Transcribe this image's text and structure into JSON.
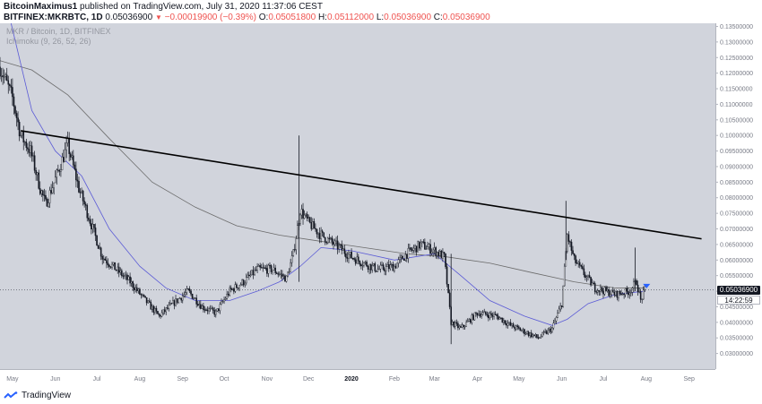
{
  "header": {
    "author": "BitcoinMaximus1",
    "published_text": " published on TradingView.com, July 31, 2020 11:37:06 CEST",
    "symbol": "BITFINEX:MKRBTC, 1D",
    "last_price": "0.05036900",
    "change": "−0.00019900 (−0.39%)",
    "open_label": "O:",
    "open": "0.05051800",
    "high_label": "H:",
    "high": "0.05112000",
    "low_label": "L:",
    "low": "0.05036900",
    "close_label": "C:",
    "close": "0.05036900"
  },
  "legend": {
    "series_title": "MKR / Bitcoin, 1D, BITFINEX",
    "indicator": "Ichimoku (9, 26, 52, 26)"
  },
  "price_tag": "0.05036900",
  "countdown": "14:22:59",
  "footer": {
    "brand": "TradingView"
  },
  "colors": {
    "plot_bg": "#d1d4dc",
    "candle": "#131722",
    "fast_line": "#5b5bd6",
    "slow_line": "#6b6b6b",
    "trendline": "#000000",
    "marker": "#2962ff"
  },
  "chart_data": {
    "type": "candlestick",
    "ylim": [
      0.025,
      0.136
    ],
    "y_ticks": [
      "0.02500000",
      "0.03000000",
      "0.03500000",
      "0.04000000",
      "0.04500000",
      "0.05000000",
      "0.05500000",
      "0.06000000",
      "0.06500000",
      "0.07000000",
      "0.07500000",
      "0.08000000",
      "0.08500000",
      "0.09000000",
      "0.09500000",
      "0.10000000",
      "0.10500000",
      "0.11000000",
      "0.11500000",
      "0.12000000",
      "0.12500000",
      "0.13000000",
      "0.13500000"
    ],
    "x_range": [
      "2019-04-22",
      "2020-09-20"
    ],
    "x_ticks": [
      {
        "label": "May",
        "date": "2019-05-01"
      },
      {
        "label": "Jun",
        "date": "2019-06-01"
      },
      {
        "label": "Jul",
        "date": "2019-07-01"
      },
      {
        "label": "Aug",
        "date": "2019-08-01"
      },
      {
        "label": "Sep",
        "date": "2019-09-01"
      },
      {
        "label": "Oct",
        "date": "2019-10-01"
      },
      {
        "label": "Nov",
        "date": "2019-11-01"
      },
      {
        "label": "Dec",
        "date": "2019-12-01"
      },
      {
        "label": "2020",
        "date": "2020-01-01",
        "bold": true
      },
      {
        "label": "Feb",
        "date": "2020-02-01"
      },
      {
        "label": "Mar",
        "date": "2020-03-01"
      },
      {
        "label": "Apr",
        "date": "2020-04-01"
      },
      {
        "label": "May",
        "date": "2020-05-01"
      },
      {
        "label": "Jun",
        "date": "2020-06-01"
      },
      {
        "label": "Jul",
        "date": "2020-07-01"
      },
      {
        "label": "Aug",
        "date": "2020-08-01"
      },
      {
        "label": "Sep",
        "date": "2020-09-01"
      }
    ],
    "price_path": [
      [
        "2019-04-22",
        0.122
      ],
      [
        "2019-05-01",
        0.112
      ],
      [
        "2019-05-07",
        0.1
      ],
      [
        "2019-05-14",
        0.095
      ],
      [
        "2019-05-21",
        0.083
      ],
      [
        "2019-05-25",
        0.078
      ],
      [
        "2019-06-01",
        0.086
      ],
      [
        "2019-06-10",
        0.097
      ],
      [
        "2019-06-18",
        0.083
      ],
      [
        "2019-06-25",
        0.074
      ],
      [
        "2019-07-05",
        0.061
      ],
      [
        "2019-07-15",
        0.057
      ],
      [
        "2019-07-25",
        0.053
      ],
      [
        "2019-08-05",
        0.047
      ],
      [
        "2019-08-15",
        0.042
      ],
      [
        "2019-08-25",
        0.046
      ],
      [
        "2019-09-05",
        0.05
      ],
      [
        "2019-09-15",
        0.045
      ],
      [
        "2019-09-25",
        0.043
      ],
      [
        "2019-10-05",
        0.05
      ],
      [
        "2019-10-15",
        0.053
      ],
      [
        "2019-10-25",
        0.057
      ],
      [
        "2019-11-05",
        0.057
      ],
      [
        "2019-11-15",
        0.054
      ],
      [
        "2019-11-20",
        0.062
      ],
      [
        "2019-11-25",
        0.076
      ],
      [
        "2019-12-01",
        0.072
      ],
      [
        "2019-12-10",
        0.068
      ],
      [
        "2019-12-20",
        0.065
      ],
      [
        "2020-01-01",
        0.061
      ],
      [
        "2020-01-10",
        0.059
      ],
      [
        "2020-01-20",
        0.057
      ],
      [
        "2020-02-01",
        0.058
      ],
      [
        "2020-02-10",
        0.062
      ],
      [
        "2020-02-20",
        0.065
      ],
      [
        "2020-03-01",
        0.063
      ],
      [
        "2020-03-08",
        0.061
      ],
      [
        "2020-03-13",
        0.04
      ],
      [
        "2020-03-20",
        0.038
      ],
      [
        "2020-04-01",
        0.043
      ],
      [
        "2020-04-15",
        0.042
      ],
      [
        "2020-04-25",
        0.039
      ],
      [
        "2020-05-05",
        0.037
      ],
      [
        "2020-05-15",
        0.035
      ],
      [
        "2020-05-25",
        0.038
      ],
      [
        "2020-06-01",
        0.046
      ],
      [
        "2020-06-05",
        0.068
      ],
      [
        "2020-06-10",
        0.06
      ],
      [
        "2020-06-18",
        0.055
      ],
      [
        "2020-06-25",
        0.051
      ],
      [
        "2020-07-10",
        0.049
      ],
      [
        "2020-07-20",
        0.05
      ],
      [
        "2020-07-25",
        0.053
      ],
      [
        "2020-07-28",
        0.047
      ],
      [
        "2020-07-31",
        0.0504
      ]
    ],
    "fast_line": [
      [
        "2019-04-30",
        0.136
      ],
      [
        "2019-05-15",
        0.108
      ],
      [
        "2019-06-01",
        0.095
      ],
      [
        "2019-06-20",
        0.087
      ],
      [
        "2019-07-10",
        0.07
      ],
      [
        "2019-08-01",
        0.058
      ],
      [
        "2019-08-20",
        0.051
      ],
      [
        "2019-09-10",
        0.047
      ],
      [
        "2019-10-05",
        0.047
      ],
      [
        "2019-10-25",
        0.05
      ],
      [
        "2019-11-10",
        0.053
      ],
      [
        "2019-11-25",
        0.058
      ],
      [
        "2019-12-10",
        0.064
      ],
      [
        "2020-01-01",
        0.063
      ],
      [
        "2020-02-01",
        0.06
      ],
      [
        "2020-03-01",
        0.062
      ],
      [
        "2020-03-20",
        0.055
      ],
      [
        "2020-04-10",
        0.047
      ],
      [
        "2020-05-05",
        0.042
      ],
      [
        "2020-05-25",
        0.039
      ],
      [
        "2020-06-05",
        0.041
      ],
      [
        "2020-06-20",
        0.046
      ],
      [
        "2020-07-10",
        0.049
      ],
      [
        "2020-07-31",
        0.05
      ]
    ],
    "slow_line": [
      [
        "2019-04-22",
        0.124
      ],
      [
        "2019-05-15",
        0.121
      ],
      [
        "2019-06-10",
        0.113
      ],
      [
        "2019-07-10",
        0.099
      ],
      [
        "2019-08-10",
        0.085
      ],
      [
        "2019-09-10",
        0.077
      ],
      [
        "2019-10-10",
        0.071
      ],
      [
        "2019-11-10",
        0.068
      ],
      [
        "2019-12-10",
        0.066
      ],
      [
        "2020-01-10",
        0.064
      ],
      [
        "2020-02-10",
        0.062
      ],
      [
        "2020-03-10",
        0.061
      ],
      [
        "2020-04-10",
        0.059
      ],
      [
        "2020-05-10",
        0.056
      ],
      [
        "2020-06-10",
        0.053
      ],
      [
        "2020-07-10",
        0.051
      ],
      [
        "2020-07-31",
        0.051
      ]
    ],
    "trendline": [
      [
        "2019-05-07",
        0.1015
      ],
      [
        "2020-09-10",
        0.0668
      ]
    ],
    "wicks": [
      [
        "2019-11-24",
        0.053,
        0.1
      ],
      [
        "2020-06-04",
        0.06,
        0.079
      ],
      [
        "2020-07-24",
        0.05,
        0.064
      ],
      [
        "2020-03-13",
        0.033,
        0.062
      ]
    ],
    "last_marker": [
      "2020-07-31",
      0.0515
    ]
  }
}
